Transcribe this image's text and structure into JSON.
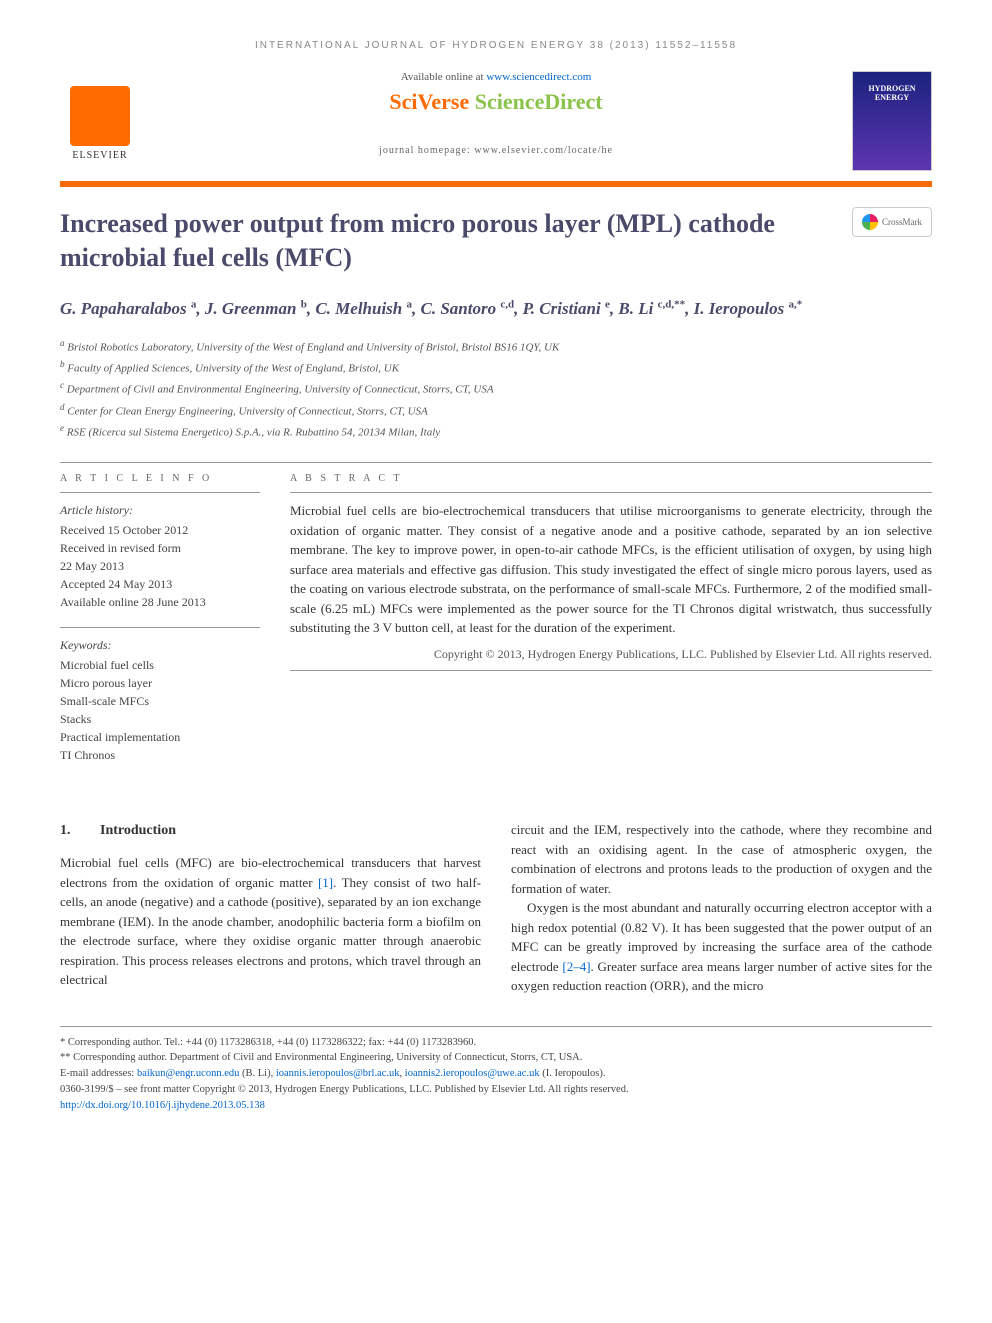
{
  "running_header": "INTERNATIONAL JOURNAL OF HYDROGEN ENERGY 38 (2013) 11552–11558",
  "header": {
    "available_prefix": "Available online at ",
    "available_link": "www.sciencedirect.com",
    "sciverse_1": "SciVerse ",
    "sciverse_2": "ScienceDirect",
    "homepage_label": "journal homepage: www.elsevier.com/locate/he",
    "elsevier": "ELSEVIER",
    "cover_title": "HYDROGEN ENERGY"
  },
  "title": "Increased power output from micro porous layer (MPL) cathode microbial fuel cells (MFC)",
  "crossmark": "CrossMark",
  "authors_html": "G. Papaharalabos <sup>a</sup>, J. Greenman <sup>b</sup>, C. Melhuish <sup>a</sup>, C. Santoro <sup>c,d</sup>, P. Cristiani <sup>e</sup>, B. Li <sup>c,d,**</sup>, I. Ieropoulos <sup>a,*</sup>",
  "affiliations": [
    "a Bristol Robotics Laboratory, University of the West of England and University of Bristol, Bristol BS16 1QY, UK",
    "b Faculty of Applied Sciences, University of the West of England, Bristol, UK",
    "c Department of Civil and Environmental Engineering, University of Connecticut, Storrs, CT, USA",
    "d Center for Clean Energy Engineering, University of Connecticut, Storrs, CT, USA",
    "e RSE (Ricerca sul Sistema Energetico) S.p.A., via R. Rubattino 54, 20134 Milan, Italy"
  ],
  "info": {
    "label": "A R T I C L E  I N F O",
    "history_label": "Article history:",
    "history": [
      "Received 15 October 2012",
      "Received in revised form",
      "22 May 2013",
      "Accepted 24 May 2013",
      "Available online 28 June 2013"
    ],
    "keywords_label": "Keywords:",
    "keywords": [
      "Microbial fuel cells",
      "Micro porous layer",
      "Small-scale MFCs",
      "Stacks",
      "Practical implementation",
      "TI Chronos"
    ]
  },
  "abstract": {
    "label": "A B S T R A C T",
    "text": "Microbial fuel cells are bio-electrochemical transducers that utilise microorganisms to generate electricity, through the oxidation of organic matter. They consist of a negative anode and a positive cathode, separated by an ion selective membrane. The key to improve power, in open-to-air cathode MFCs, is the efficient utilisation of oxygen, by using high surface area materials and effective gas diffusion. This study investigated the effect of single micro porous layers, used as the coating on various electrode substrata, on the performance of small-scale MFCs. Furthermore, 2 of the modified small-scale (6.25 mL) MFCs were implemented as the power source for the TI Chronos digital wristwatch, thus successfully substituting the 3 V button cell, at least for the duration of the experiment.",
    "copyright": "Copyright © 2013, Hydrogen Energy Publications, LLC. Published by Elsevier Ltd. All rights reserved."
  },
  "body": {
    "section_num": "1.",
    "section_title": "Introduction",
    "col1_p1_a": "Microbial fuel cells (MFC) are bio-electrochemical transducers that harvest electrons from the oxidation of organic matter ",
    "col1_ref1": "[1]",
    "col1_p1_b": ". They consist of two half-cells, an anode (negative) and a cathode (positive), separated by an ion exchange membrane (IEM). In the anode chamber, anodophilic bacteria form a biofilm on the electrode surface, where they oxidise organic matter through anaerobic respiration. This process releases electrons and protons, which travel through an electrical",
    "col2_p1": "circuit and the IEM, respectively into the cathode, where they recombine and react with an oxidising agent. In the case of atmospheric oxygen, the combination of electrons and protons leads to the production of oxygen and the formation of water.",
    "col2_p2_a": "Oxygen is the most abundant and naturally occurring electron acceptor with a high redox potential (0.82 V). It has been suggested that the power output of an MFC can be greatly improved by increasing the surface area of the cathode electrode ",
    "col2_ref2": "[2–4]",
    "col2_p2_b": ". Greater surface area means larger number of active sites for the oxygen reduction reaction (ORR), and the micro"
  },
  "footer": {
    "corr1": "* Corresponding author. Tel.: +44 (0) 1173286318, +44 (0) 1173286322; fax: +44 (0) 1173283960.",
    "corr2": "** Corresponding author. Department of Civil and Environmental Engineering, University of Connecticut, Storrs, CT, USA.",
    "email_label": "E-mail addresses: ",
    "email1": "baikun@engr.uconn.edu",
    "email1_who": " (B. Li), ",
    "email2": "ioannis.ieropoulos@brl.ac.uk",
    "email_sep": ", ",
    "email3": "ioannis2.ieropoulos@uwe.ac.uk",
    "email3_who": " (I. Ieropoulos).",
    "issn": "0360-3199/$ – see front matter Copyright © 2013, Hydrogen Energy Publications, LLC. Published by Elsevier Ltd. All rights reserved.",
    "doi": "http://dx.doi.org/10.1016/j.ijhydene.2013.05.138"
  }
}
